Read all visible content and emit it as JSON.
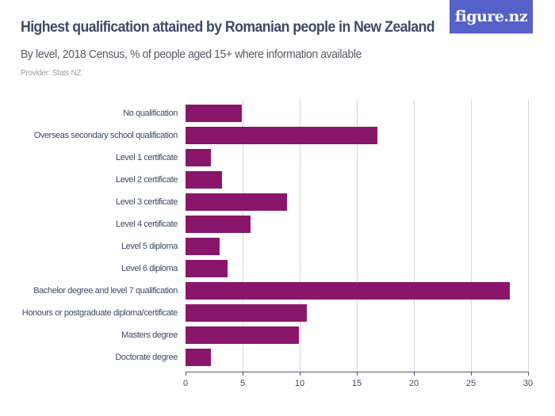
{
  "header": {
    "title": "Highest qualification attained by Romanian people in New Zealand",
    "subtitle": "By level, 2018 Census, % of people aged 15+ where information available",
    "provider": "Provider: Stats NZ",
    "logo_text": "figure.nz",
    "logo_color": "#5561c8"
  },
  "style": {
    "bar_color": "#8a166c"
  },
  "chart_data": {
    "type": "bar",
    "orientation": "horizontal",
    "title": "Highest qualification attained by Romanian people in New Zealand",
    "subtitle": "By level, 2018 Census, % of people aged 15+ where information available",
    "xlabel": "",
    "ylabel": "",
    "xlim": [
      0,
      30
    ],
    "x_ticks": [
      0,
      5,
      10,
      15,
      20,
      25,
      30
    ],
    "grid": true,
    "legend": null,
    "categories": [
      "No qualification",
      "Overseas secondary school qualification",
      "Level 1 certificate",
      "Level 2 certificate",
      "Level 3 certificate",
      "Level 4 certificate",
      "Level 5 diploma",
      "Level 6 diploma",
      "Bachelor degree and level 7 qualification",
      "Honours or postgraduate diploma/certificate",
      "Masters degree",
      "Doctorate degree"
    ],
    "values": [
      4.9,
      16.8,
      2.2,
      3.2,
      8.9,
      5.7,
      3.0,
      3.7,
      28.4,
      10.6,
      9.9,
      2.2
    ]
  }
}
